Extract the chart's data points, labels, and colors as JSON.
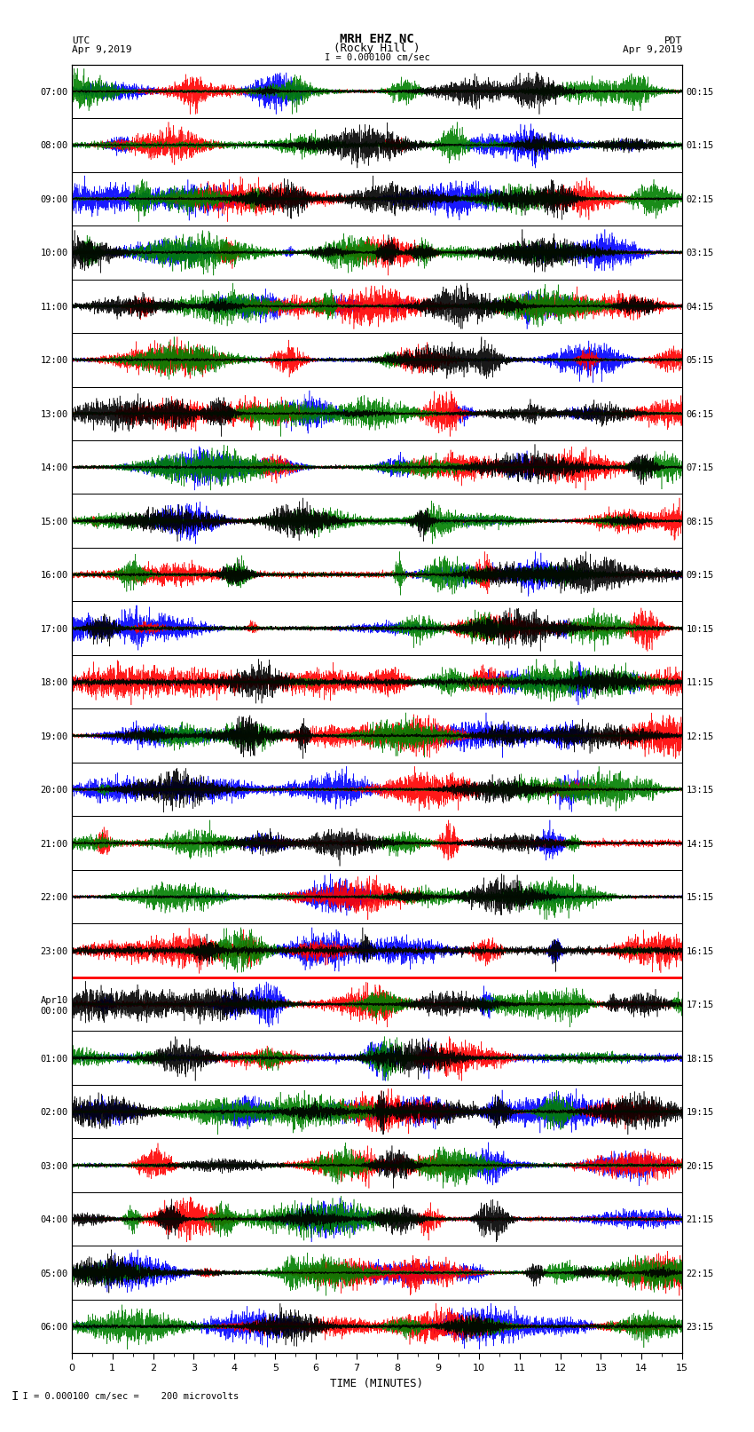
{
  "title_line1": "MRH EHZ NC",
  "title_line2": "(Rocky Hill )",
  "scale_label": "I = 0.000100 cm/sec",
  "left_label_top": "UTC",
  "left_label_date": "Apr 9,2019",
  "right_label_top": "PDT",
  "right_label_date": "Apr 9,2019",
  "bottom_label": "TIME (MINUTES)",
  "footer_text": "= 0.000100 cm/sec =    200 microvolts",
  "utc_times": [
    "07:00",
    "08:00",
    "09:00",
    "10:00",
    "11:00",
    "12:00",
    "13:00",
    "14:00",
    "15:00",
    "16:00",
    "17:00",
    "18:00",
    "19:00",
    "20:00",
    "21:00",
    "22:00",
    "23:00",
    "Apr10\n00:00",
    "01:00",
    "02:00",
    "03:00",
    "04:00",
    "05:00",
    "06:00"
  ],
  "pdt_times": [
    "00:15",
    "01:15",
    "02:15",
    "03:15",
    "04:15",
    "05:15",
    "06:15",
    "07:15",
    "08:15",
    "09:15",
    "10:15",
    "11:15",
    "12:15",
    "13:15",
    "14:15",
    "15:15",
    "16:15",
    "17:15",
    "18:15",
    "19:15",
    "20:15",
    "21:15",
    "22:15",
    "23:15"
  ],
  "n_rows": 24,
  "n_minutes": 15,
  "fig_width": 8.5,
  "fig_height": 16.13,
  "dpi": 100,
  "colors": [
    "blue",
    "red",
    "green",
    "black"
  ],
  "bg_color": "white",
  "plot_bg": "white"
}
